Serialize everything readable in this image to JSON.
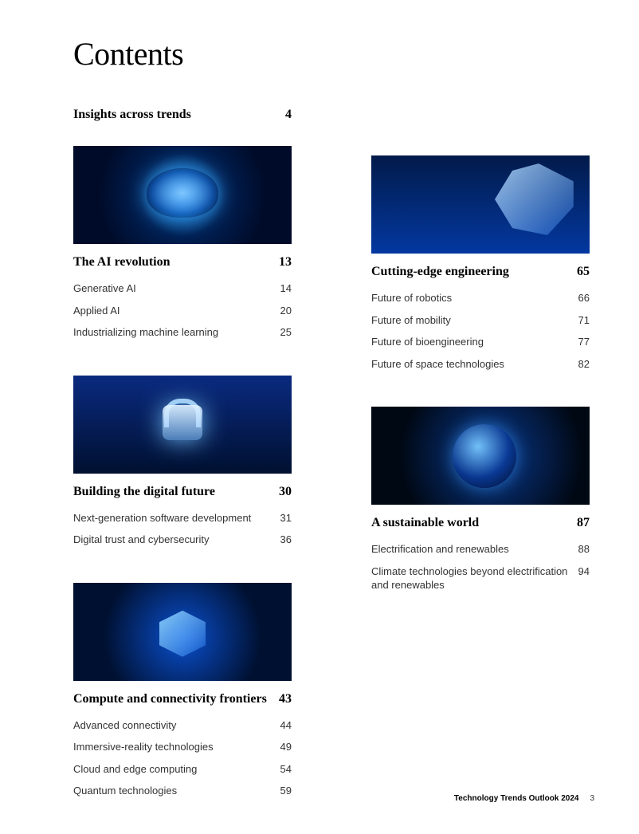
{
  "title": "Contents",
  "intro": {
    "label": "Insights across trends",
    "page": "4"
  },
  "sections": [
    {
      "title": "The AI revolution",
      "page": "13",
      "image": "brain",
      "items": [
        {
          "label": "Generative AI",
          "page": "14"
        },
        {
          "label": "Applied AI",
          "page": "20"
        },
        {
          "label": "Industrializing machine learning",
          "page": "25"
        }
      ]
    },
    {
      "title": "Building the digital future",
      "page": "30",
      "image": "lock",
      "items": [
        {
          "label": "Next-generation software development",
          "page": "31"
        },
        {
          "label": "Digital trust and cybersecurity",
          "page": "36"
        }
      ]
    },
    {
      "title": "Compute and connectivity frontiers",
      "page": "43",
      "image": "cube",
      "items": [
        {
          "label": "Advanced connectivity",
          "page": "44"
        },
        {
          "label": "Immersive-reality technologies",
          "page": "49"
        },
        {
          "label": "Cloud and edge computing",
          "page": "54"
        },
        {
          "label": "Quantum technologies",
          "page": "59"
        }
      ]
    },
    {
      "title": "Cutting-edge engineering",
      "page": "65",
      "image": "robot",
      "items": [
        {
          "label": "Future of robotics",
          "page": "66"
        },
        {
          "label": "Future of mobility",
          "page": "71"
        },
        {
          "label": "Future of bioengineering",
          "page": "77"
        },
        {
          "label": "Future of space technologies",
          "page": "82"
        }
      ]
    },
    {
      "title": "A sustainable world",
      "page": "87",
      "image": "globe",
      "items": [
        {
          "label": "Electrification and renewables",
          "page": "88"
        },
        {
          "label": "Climate technologies beyond electrification and renewables",
          "page": "94"
        }
      ]
    }
  ],
  "footer": {
    "label": "Technology Trends Outlook 2024",
    "page": "3"
  },
  "colors": {
    "text": "#000000",
    "body": "#333333",
    "background": "#ffffff",
    "accent_blue": "#0a50d0"
  },
  "layout": {
    "left_column_sections": [
      0,
      1,
      2
    ],
    "right_column_sections": [
      3,
      4
    ]
  }
}
